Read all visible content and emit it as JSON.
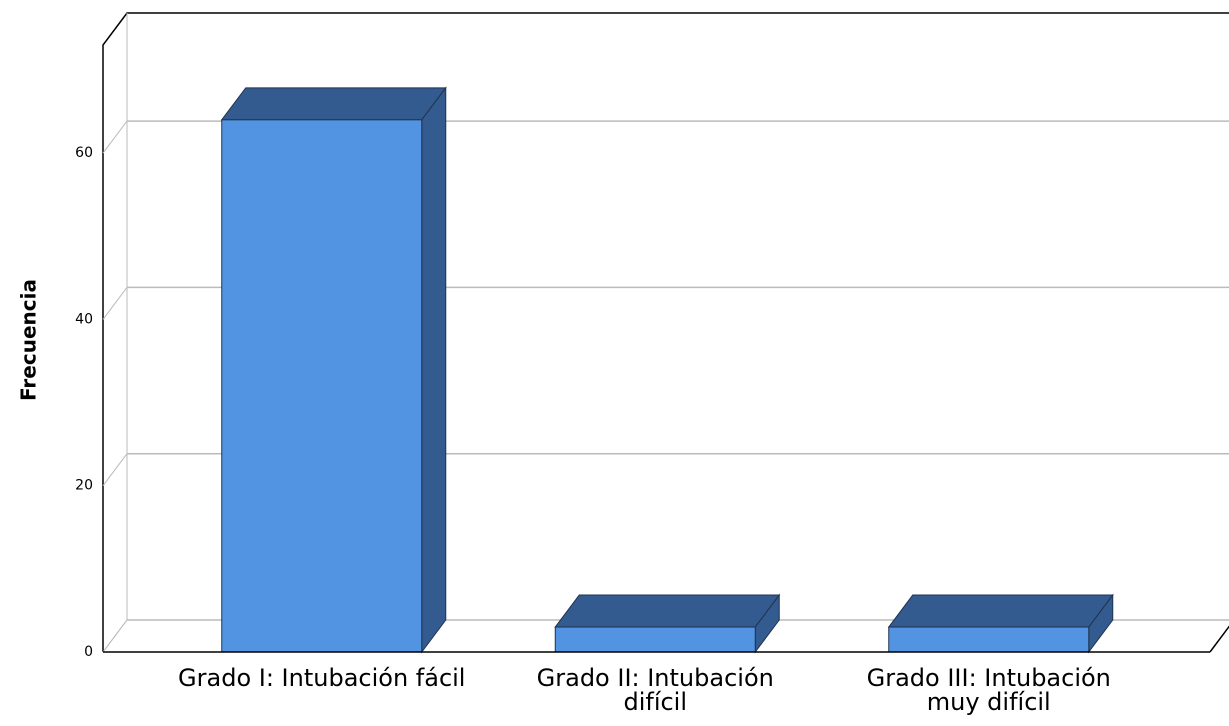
{
  "chart_data": {
    "type": "bar3d",
    "y_label": "Frecuencia",
    "categories": [
      "Grado I: Intubación fácil",
      "Grado II: Intubación difícil",
      "Grado III: Intubación muy difícil"
    ],
    "values": [
      64,
      3,
      3
    ],
    "color": "#5294e2",
    "side_color": "#345b8f",
    "ylim": [
      0,
      73
    ],
    "yticks": [
      0,
      20,
      40,
      60
    ],
    "grid": true
  }
}
